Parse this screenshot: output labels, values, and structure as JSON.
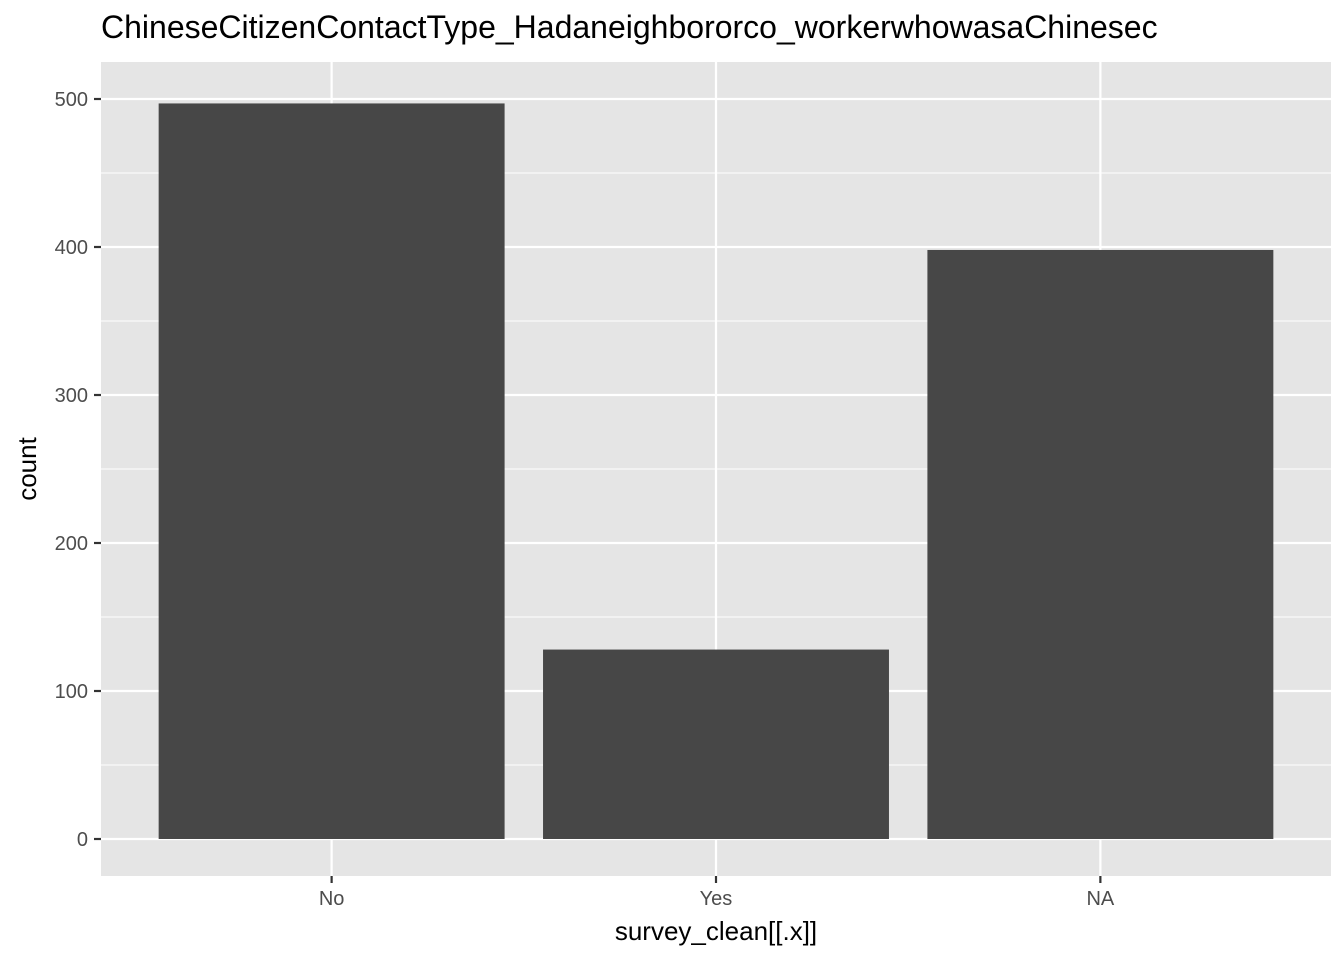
{
  "chart_data": {
    "type": "bar",
    "title": "ChineseCitizenContactType_Hadaneighbororco_workerwhowasaChinesec",
    "xlabel": "survey_clean[[.x]]",
    "ylabel": "count",
    "categories": [
      "No",
      "Yes",
      "NA"
    ],
    "values": [
      497,
      128,
      398
    ],
    "ylim": [
      -25,
      525
    ],
    "yticks": [
      0,
      100,
      200,
      300,
      400,
      500
    ],
    "ytick_labels": [
      "0",
      "100",
      "200",
      "300",
      "400",
      "500"
    ],
    "grid": true,
    "legend": "none",
    "bar_color": "#474747",
    "panel_color": "#e5e5e5"
  }
}
